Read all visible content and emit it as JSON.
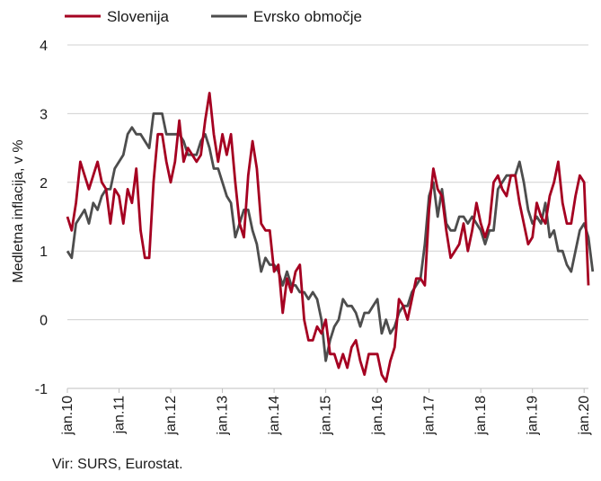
{
  "chart_data": {
    "type": "line",
    "ylabel": "Medletna inflacija, v %",
    "ylim": [
      -1,
      4
    ],
    "yticks": [
      -1,
      0,
      1,
      2,
      3,
      4
    ],
    "x_start": "jan.10",
    "x_ticks": [
      "jan.10",
      "jan.11",
      "jan.12",
      "jan.13",
      "jan.14",
      "jan.15",
      "jan.16",
      "jan.17",
      "jan.18",
      "jan.19",
      "jan.20"
    ],
    "grid": "horizontal",
    "legend_position": "top-left",
    "series": [
      {
        "name": "Slovenija",
        "color": "#a50021",
        "values": [
          1.5,
          1.3,
          1.7,
          2.3,
          2.1,
          1.9,
          2.1,
          2.3,
          2.0,
          1.9,
          1.4,
          1.9,
          1.8,
          1.4,
          1.9,
          1.7,
          2.2,
          1.3,
          0.9,
          0.9,
          2.0,
          2.7,
          2.7,
          2.3,
          2.0,
          2.3,
          2.9,
          2.3,
          2.5,
          2.4,
          2.3,
          2.4,
          2.9,
          3.3,
          2.7,
          2.3,
          2.7,
          2.4,
          2.7,
          2.0,
          1.4,
          1.2,
          2.1,
          2.6,
          2.2,
          1.4,
          1.3,
          1.3,
          0.7,
          0.8,
          0.1,
          0.6,
          0.4,
          0.7,
          0.8,
          0.0,
          -0.3,
          -0.3,
          -0.1,
          -0.2,
          0.0,
          -0.5,
          -0.5,
          -0.7,
          -0.5,
          -0.7,
          -0.4,
          -0.3,
          -0.6,
          -0.8,
          -0.5,
          -0.5,
          -0.5,
          -0.8,
          -0.9,
          -0.6,
          -0.4,
          0.3,
          0.2,
          0.0,
          0.3,
          0.6,
          0.6,
          0.5,
          1.6,
          2.2,
          1.9,
          1.8,
          1.3,
          0.9,
          1.0,
          1.1,
          1.4,
          1.0,
          1.3,
          1.7,
          1.4,
          1.2,
          1.4,
          2.0,
          2.1,
          1.9,
          1.8,
          2.1,
          2.1,
          1.7,
          1.4,
          1.1,
          1.2,
          1.7,
          1.5,
          1.4,
          1.8,
          2.0,
          2.3,
          1.7,
          1.4,
          1.4,
          1.8,
          2.1,
          2.0,
          0.5
        ]
      },
      {
        "name": "Evrsko območje",
        "color": "#4d4d4d",
        "values": [
          1.0,
          0.9,
          1.4,
          1.5,
          1.6,
          1.4,
          1.7,
          1.6,
          1.8,
          1.9,
          1.9,
          2.2,
          2.3,
          2.4,
          2.7,
          2.8,
          2.7,
          2.7,
          2.6,
          2.5,
          3.0,
          3.0,
          3.0,
          2.7,
          2.7,
          2.7,
          2.7,
          2.6,
          2.4,
          2.4,
          2.4,
          2.6,
          2.7,
          2.5,
          2.2,
          2.2,
          2.0,
          1.8,
          1.7,
          1.2,
          1.4,
          1.6,
          1.6,
          1.3,
          1.1,
          0.7,
          0.9,
          0.8,
          0.8,
          0.7,
          0.5,
          0.7,
          0.5,
          0.5,
          0.4,
          0.4,
          0.3,
          0.4,
          0.3,
          0.0,
          -0.6,
          -0.3,
          -0.1,
          0.0,
          0.3,
          0.2,
          0.2,
          0.1,
          -0.1,
          0.1,
          0.1,
          0.2,
          0.3,
          -0.2,
          0.0,
          -0.2,
          -0.1,
          0.1,
          0.2,
          0.2,
          0.4,
          0.5,
          0.6,
          1.1,
          1.8,
          2.0,
          1.5,
          1.9,
          1.4,
          1.3,
          1.3,
          1.5,
          1.5,
          1.4,
          1.5,
          1.4,
          1.3,
          1.1,
          1.3,
          1.3,
          1.9,
          2.0,
          2.1,
          2.1,
          2.1,
          2.3,
          2.0,
          1.6,
          1.4,
          1.5,
          1.4,
          1.7,
          1.2,
          1.3,
          1.0,
          1.0,
          0.8,
          0.7,
          1.0,
          1.3,
          1.4,
          1.2,
          0.7
        ]
      }
    ]
  },
  "footer": {
    "source": "Vir: SURS, Eurostat."
  }
}
